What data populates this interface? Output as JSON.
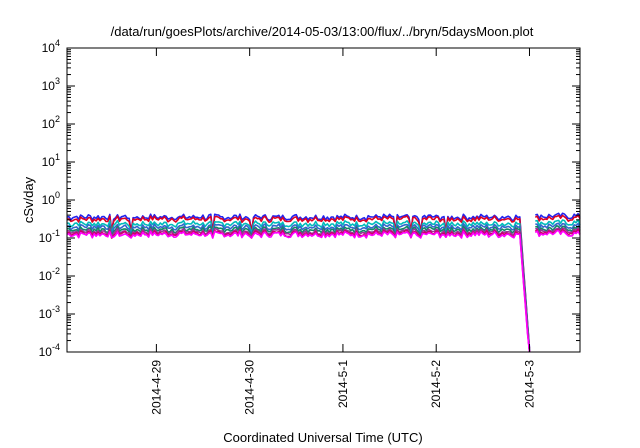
{
  "chart_data": {
    "type": "line",
    "title": "/data/run/goesPlots/archive/2014-05-03/13:00/flux/../bryn/5daysMoon.plot",
    "xlabel": "Coordinated Universal Time (UTC)",
    "ylabel": "cSv/day",
    "yscale": "log",
    "ylim": [
      0.0001,
      10000
    ],
    "yticks": [
      {
        "value": 0.0001,
        "base": "10",
        "exp": "-4"
      },
      {
        "value": 0.001,
        "base": "10",
        "exp": "-3"
      },
      {
        "value": 0.01,
        "base": "10",
        "exp": "-2"
      },
      {
        "value": 0.1,
        "base": "10",
        "exp": "-1"
      },
      {
        "value": 1,
        "base": "10",
        "exp": "0"
      },
      {
        "value": 10,
        "base": "10",
        "exp": "1"
      },
      {
        "value": 100,
        "base": "10",
        "exp": "2"
      },
      {
        "value": 1000,
        "base": "10",
        "exp": "3"
      },
      {
        "value": 10000,
        "base": "10",
        "exp": "4"
      }
    ],
    "xlim": [
      "2014-04-28T01:00",
      "2014-05-03T13:00"
    ],
    "xticks": [
      "2014-4-29",
      "2014-4-30",
      "2014-5-1",
      "2014-5-2",
      "2014-5-3"
    ],
    "grid": false,
    "legend": "none",
    "series": [
      {
        "color": "#2222ee",
        "level": 0.36
      },
      {
        "color": "#dd0022",
        "level": 0.32
      },
      {
        "color": "#00bbbb",
        "level": 0.24
      },
      {
        "color": "#3366cc",
        "level": 0.2
      },
      {
        "color": "#118866",
        "level": 0.17
      },
      {
        "color": "#993399",
        "level": 0.15
      },
      {
        "color": "#cc0066",
        "level": 0.135
      },
      {
        "color": "#ff00ff",
        "level": 0.125
      }
    ],
    "events": [
      {
        "label": "drop",
        "start": "2014-05-02T21:30",
        "end": "2014-05-03T00:00",
        "value_at_end": 0.0001
      },
      {
        "label": "gap",
        "start": "2014-05-03T00:00",
        "end": "2014-05-03T01:20"
      }
    ]
  }
}
